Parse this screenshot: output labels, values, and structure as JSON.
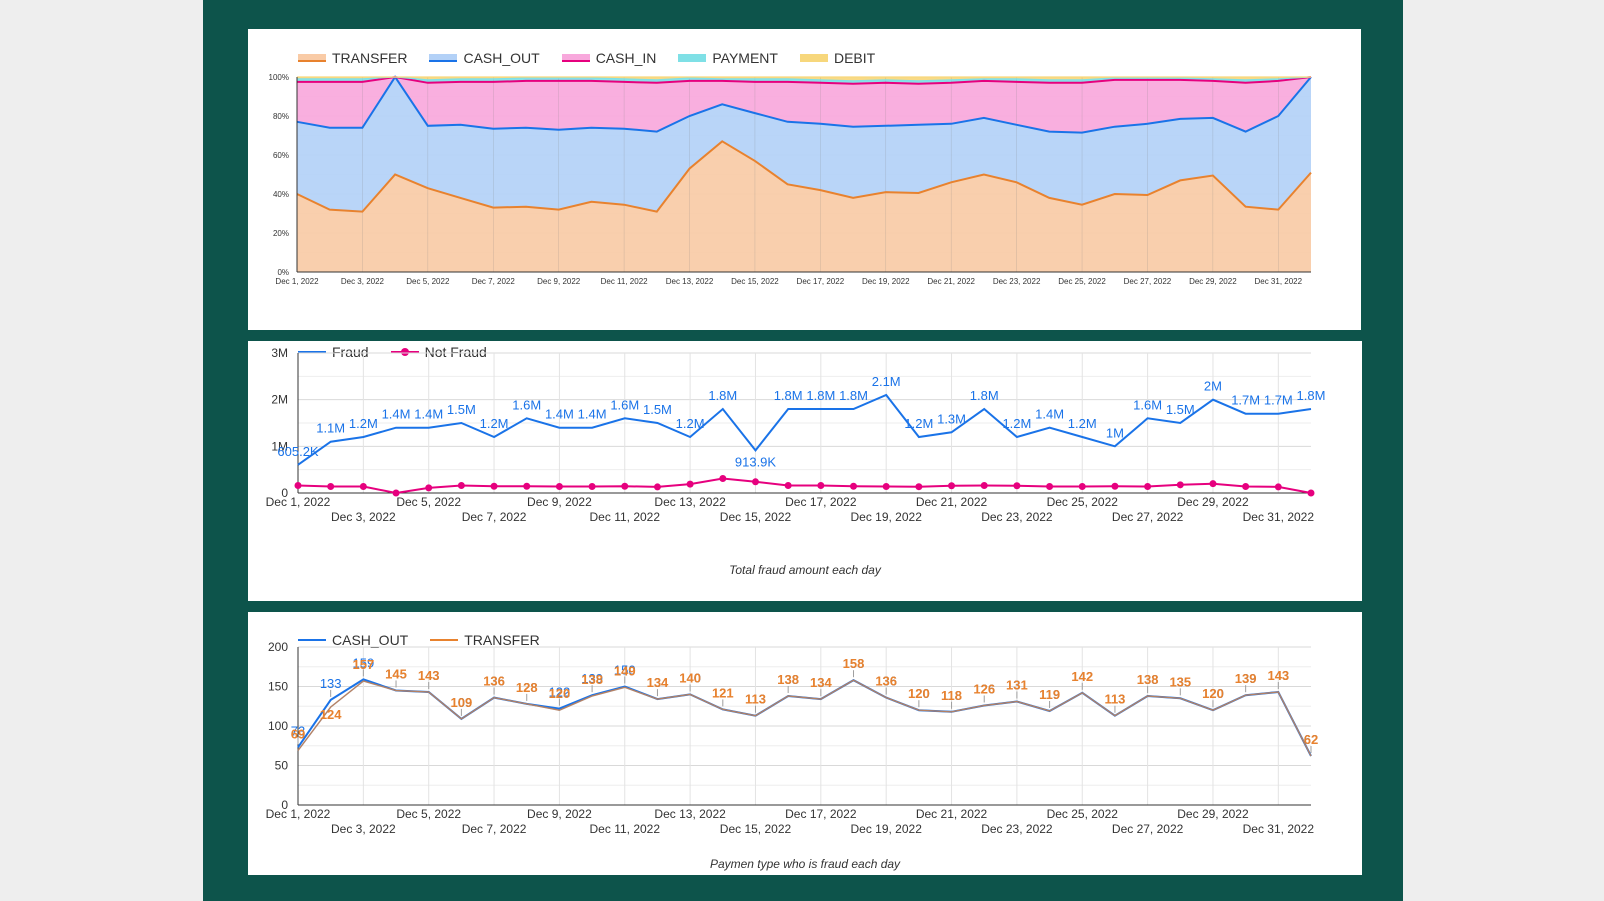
{
  "colors": {
    "canvas": "#0d544b",
    "transfer": "#f9cba6",
    "transfer_line": "#e8822e",
    "cash_out": "#b3d1f7",
    "cash_out_line": "#1a73e8",
    "cash_in": "#f8a8dc",
    "cash_in_line": "#e6007e",
    "payment": "#7fe0e6",
    "debit": "#f7d77c",
    "fraud": "#1a73e8",
    "not_fraud": "#e6007e",
    "ct_cash_out": "#1a73e8",
    "ct_transfer": "#e8822e"
  },
  "chart_data": [
    {
      "id": "type-share",
      "type": "area",
      "stacked_percent": true,
      "x": [
        "Dec 1, 2022",
        "Dec 2, 2022",
        "Dec 3, 2022",
        "Dec 4, 2022",
        "Dec 5, 2022",
        "Dec 6, 2022",
        "Dec 7, 2022",
        "Dec 8, 2022",
        "Dec 9, 2022",
        "Dec 10, 2022",
        "Dec 11, 2022",
        "Dec 12, 2022",
        "Dec 13, 2022",
        "Dec 14, 2022",
        "Dec 15, 2022",
        "Dec 16, 2022",
        "Dec 17, 2022",
        "Dec 18, 2022",
        "Dec 19, 2022",
        "Dec 20, 2022",
        "Dec 21, 2022",
        "Dec 22, 2022",
        "Dec 23, 2022",
        "Dec 24, 2022",
        "Dec 25, 2022",
        "Dec 26, 2022",
        "Dec 27, 2022",
        "Dec 28, 2022",
        "Dec 29, 2022",
        "Dec 30, 2022",
        "Dec 31, 2022",
        "Jan 1, 2023"
      ],
      "x_tick_labels": [
        "Dec 1, 2022",
        "Dec 3, 2022",
        "Dec 5, 2022",
        "Dec 7, 2022",
        "Dec 9, 2022",
        "Dec 11, 2022",
        "Dec 13, 2022",
        "Dec 15, 2022",
        "Dec 17, 2022",
        "Dec 19, 2022",
        "Dec 21, 2022",
        "Dec 23, 2022",
        "Dec 25, 2022",
        "Dec 27, 2022",
        "Dec 29, 2022",
        "Dec 31, 2022"
      ],
      "y_ticks": [
        "0%",
        "20%",
        "40%",
        "60%",
        "80%",
        "100%"
      ],
      "ylim": [
        0,
        100
      ],
      "legend_position": "top-left",
      "series": [
        {
          "name": "TRANSFER",
          "values": [
            40,
            32,
            31,
            50,
            43,
            38,
            33,
            33.5,
            32,
            36,
            34.5,
            31,
            53,
            67,
            57,
            45,
            42,
            38,
            41,
            40.5,
            46,
            50,
            46,
            38,
            34.5,
            40,
            39.5,
            47,
            49.5,
            33.5,
            32,
            51
          ]
        },
        {
          "name": "CASH_OUT",
          "values": [
            37,
            42,
            43,
            50,
            32,
            37.5,
            40.5,
            40.5,
            41,
            38,
            39,
            41,
            27,
            19,
            24.5,
            32,
            34,
            36.5,
            34,
            35,
            30,
            29,
            29.5,
            34,
            37,
            34.5,
            36.5,
            31.5,
            29.5,
            38.5,
            48,
            49
          ]
        },
        {
          "name": "CASH_IN",
          "values": [
            20.5,
            23.5,
            23.5,
            0,
            22,
            22,
            24,
            24,
            25,
            24,
            24,
            25,
            18,
            12,
            16,
            20.5,
            21,
            22,
            22,
            21,
            21,
            19,
            22,
            25,
            25.5,
            24,
            22.5,
            20,
            19,
            25,
            18,
            0
          ]
        },
        {
          "name": "PAYMENT",
          "values": [
            1.5,
            1.5,
            1.5,
            0,
            1.5,
            1.5,
            1.5,
            1.5,
            1.5,
            1.5,
            1.5,
            1.5,
            1.5,
            1,
            1.5,
            1.5,
            1.5,
            1.5,
            1.5,
            1.5,
            1.5,
            1,
            1.5,
            1.5,
            1.5,
            1,
            1,
            1,
            1,
            1.5,
            1,
            0
          ]
        },
        {
          "name": "DEBIT",
          "values": [
            1,
            1,
            1,
            0,
            1.5,
            1,
            1,
            0.5,
            0.5,
            0.5,
            1,
            1.5,
            0.5,
            1,
            1,
            1,
            1.5,
            2,
            1.5,
            2,
            1.5,
            1,
            1,
            1.5,
            1.5,
            0.5,
            0.5,
            0.5,
            1,
            1.5,
            1,
            0
          ]
        }
      ]
    },
    {
      "id": "fraud-amount",
      "type": "line",
      "title": "Total fraud amount each day",
      "x": [
        "Dec 1, 2022",
        "Dec 2, 2022",
        "Dec 3, 2022",
        "Dec 4, 2022",
        "Dec 5, 2022",
        "Dec 6, 2022",
        "Dec 7, 2022",
        "Dec 8, 2022",
        "Dec 9, 2022",
        "Dec 10, 2022",
        "Dec 11, 2022",
        "Dec 12, 2022",
        "Dec 13, 2022",
        "Dec 14, 2022",
        "Dec 15, 2022",
        "Dec 16, 2022",
        "Dec 17, 2022",
        "Dec 18, 2022",
        "Dec 19, 2022",
        "Dec 20, 2022",
        "Dec 21, 2022",
        "Dec 22, 2022",
        "Dec 23, 2022",
        "Dec 24, 2022",
        "Dec 25, 2022",
        "Dec 26, 2022",
        "Dec 27, 2022",
        "Dec 28, 2022",
        "Dec 29, 2022",
        "Dec 30, 2022",
        "Dec 31, 2022",
        "Jan 1, 2023"
      ],
      "x_tick_labels": [
        "Dec 1, 2022",
        "Dec 3, 2022",
        "Dec 5, 2022",
        "Dec 7, 2022",
        "Dec 9, 2022",
        "Dec 11, 2022",
        "Dec 13, 2022",
        "Dec 15, 2022",
        "Dec 17, 2022",
        "Dec 19, 2022",
        "Dec 21, 2022",
        "Dec 23, 2022",
        "Dec 25, 2022",
        "Dec 27, 2022",
        "Dec 29, 2022",
        "Dec 31, 2022"
      ],
      "y_ticks": [
        "0",
        "1M",
        "2M",
        "3M"
      ],
      "ylim": [
        0,
        3000000
      ],
      "legend_position": "top-left",
      "series": [
        {
          "name": "Fraud",
          "values": [
            605200,
            1100000,
            1200000,
            1400000,
            1400000,
            1500000,
            1200000,
            1600000,
            1400000,
            1400000,
            1600000,
            1500000,
            1200000,
            1800000,
            913900,
            1800000,
            1800000,
            1800000,
            2100000,
            1200000,
            1300000,
            1800000,
            1200000,
            1400000,
            1200000,
            1000000,
            1600000,
            1500000,
            2000000,
            1700000,
            1700000,
            1800000
          ],
          "labels": [
            "605.2K",
            "1.1M",
            "1.2M",
            "1.4M",
            "1.4M",
            "1.5M",
            "1.2M",
            "1.6M",
            "1.4M",
            "1.4M",
            "1.6M",
            "1.5M",
            "1.2M",
            "1.8M",
            "913.9K",
            "1.8M",
            "1.8M",
            "1.8M",
            "2.1M",
            "1.2M",
            "1.3M",
            "1.8M",
            "1.2M",
            "1.4M",
            "1.2M",
            "1M",
            "1.6M",
            "1.5M",
            "2M",
            "1.7M",
            "1.7M",
            "1.8M"
          ]
        },
        {
          "name": "Not Fraud",
          "values": [
            160000,
            140000,
            140000,
            0,
            110000,
            160000,
            145000,
            145000,
            140000,
            140000,
            145000,
            130000,
            190000,
            310000,
            240000,
            160000,
            160000,
            145000,
            140000,
            135000,
            155000,
            160000,
            155000,
            140000,
            140000,
            145000,
            140000,
            175000,
            200000,
            140000,
            130000,
            0
          ]
        }
      ]
    },
    {
      "id": "fraud-by-type",
      "type": "line",
      "title": "Paymen type who is fraud each day",
      "x": [
        "Dec 1, 2022",
        "Dec 2, 2022",
        "Dec 3, 2022",
        "Dec 4, 2022",
        "Dec 5, 2022",
        "Dec 6, 2022",
        "Dec 7, 2022",
        "Dec 8, 2022",
        "Dec 9, 2022",
        "Dec 10, 2022",
        "Dec 11, 2022",
        "Dec 12, 2022",
        "Dec 13, 2022",
        "Dec 14, 2022",
        "Dec 15, 2022",
        "Dec 16, 2022",
        "Dec 17, 2022",
        "Dec 18, 2022",
        "Dec 19, 2022",
        "Dec 20, 2022",
        "Dec 21, 2022",
        "Dec 22, 2022",
        "Dec 23, 2022",
        "Dec 24, 2022",
        "Dec 25, 2022",
        "Dec 26, 2022",
        "Dec 27, 2022",
        "Dec 28, 2022",
        "Dec 29, 2022",
        "Dec 30, 2022",
        "Dec 31, 2022",
        "Jan 1, 2023"
      ],
      "x_tick_labels": [
        "Dec 1, 2022",
        "Dec 3, 2022",
        "Dec 5, 2022",
        "Dec 7, 2022",
        "Dec 9, 2022",
        "Dec 11, 2022",
        "Dec 13, 2022",
        "Dec 15, 2022",
        "Dec 17, 2022",
        "Dec 19, 2022",
        "Dec 21, 2022",
        "Dec 23, 2022",
        "Dec 25, 2022",
        "Dec 27, 2022",
        "Dec 29, 2022",
        "Dec 31, 2022"
      ],
      "y_ticks": [
        "0",
        "50",
        "100",
        "150",
        "200"
      ],
      "ylim": [
        0,
        200
      ],
      "legend_position": "top-left",
      "series": [
        {
          "name": "CASH_OUT",
          "values": [
            73,
            133,
            159,
            145,
            143,
            109,
            136,
            128,
            122,
            139,
            150,
            134,
            140,
            121,
            113,
            138,
            134,
            158,
            136,
            120,
            118,
            126,
            131,
            119,
            142,
            113,
            138,
            135,
            120,
            139,
            143,
            62
          ]
        },
        {
          "name": "TRANSFER",
          "values": [
            69,
            124,
            157,
            145,
            143,
            109,
            136,
            128,
            120,
            138,
            149,
            134,
            140,
            121,
            113,
            138,
            134,
            158,
            136,
            120,
            118,
            126,
            131,
            119,
            142,
            113,
            138,
            135,
            120,
            139,
            143,
            62
          ]
        }
      ]
    }
  ]
}
